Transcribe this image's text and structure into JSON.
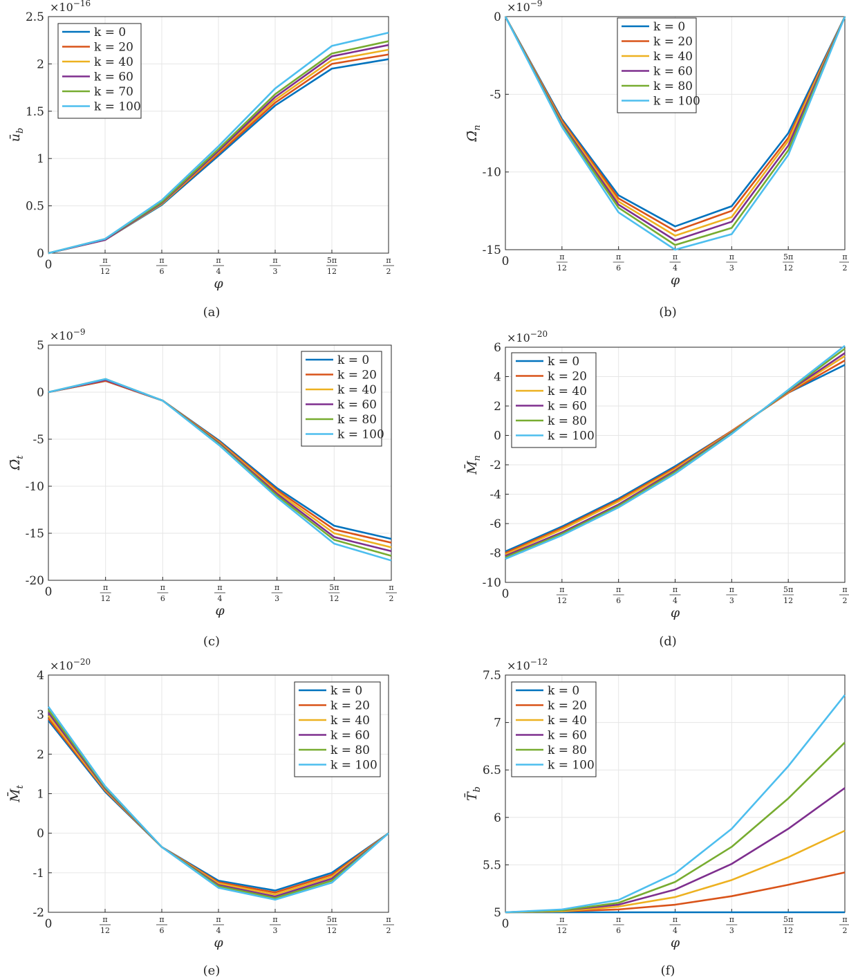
{
  "figure": {
    "captions": [
      "(a)",
      "(b)",
      "(c)",
      "(d)",
      "(e)",
      "(f)"
    ]
  },
  "colors": [
    "#0072BD",
    "#D95319",
    "#EDB120",
    "#7E2F8E",
    "#77AC30",
    "#4DBEEE"
  ],
  "x_ticks": [
    "0",
    "π/12",
    "π/6",
    "π/4",
    "π/3",
    "5π/12",
    "π/2"
  ],
  "chart_data": [
    {
      "type": "line",
      "caption": "(a)",
      "xlabel": "φ",
      "ylabel": "ū_b",
      "exponent": "×10^-16",
      "x": [
        0,
        15,
        30,
        45,
        60,
        75,
        90
      ],
      "ylim": [
        0,
        2.5
      ],
      "yticks": [
        0,
        0.5,
        1,
        1.5,
        2,
        2.5
      ],
      "ytick_labels": [
        "0",
        "0.5",
        "1",
        "1.5",
        "2",
        "2.5"
      ],
      "legend_position": "top-left",
      "series": [
        {
          "name": "k = 0",
          "values": [
            0,
            0.14,
            0.51,
            1.03,
            1.56,
            1.95,
            2.05
          ]
        },
        {
          "name": "k = 20",
          "values": [
            0,
            0.14,
            0.52,
            1.05,
            1.59,
            2.0,
            2.1
          ]
        },
        {
          "name": "k = 40",
          "values": [
            0,
            0.14,
            0.52,
            1.07,
            1.62,
            2.04,
            2.15
          ]
        },
        {
          "name": "k = 60",
          "values": [
            0,
            0.14,
            0.53,
            1.08,
            1.65,
            2.08,
            2.2
          ]
        },
        {
          "name": "k = 70",
          "values": [
            0,
            0.15,
            0.54,
            1.1,
            1.68,
            2.11,
            2.24
          ]
        },
        {
          "name": "k = 100",
          "values": [
            0,
            0.15,
            0.56,
            1.13,
            1.74,
            2.19,
            2.33
          ]
        }
      ]
    },
    {
      "type": "line",
      "caption": "(b)",
      "xlabel": "φ",
      "ylabel": "Ω̄_n",
      "exponent": "×10^-9",
      "x": [
        0,
        15,
        30,
        45,
        60,
        75,
        90
      ],
      "ylim": [
        -15,
        0
      ],
      "yticks": [
        -15,
        -10,
        -5,
        0
      ],
      "ytick_labels": [
        "-15",
        "-10",
        "-5",
        "0"
      ],
      "legend_position": "top-center",
      "series": [
        {
          "name": "k = 0",
          "values": [
            0,
            -6.6,
            -11.5,
            -13.5,
            -12.2,
            -7.5,
            0
          ]
        },
        {
          "name": "k = 20",
          "values": [
            0,
            -6.7,
            -11.7,
            -13.8,
            -12.5,
            -7.8,
            0
          ]
        },
        {
          "name": "k = 40",
          "values": [
            0,
            -6.8,
            -11.9,
            -14.1,
            -12.9,
            -8.0,
            0
          ]
        },
        {
          "name": "k = 60",
          "values": [
            0,
            -6.9,
            -12.1,
            -14.4,
            -13.2,
            -8.3,
            0
          ]
        },
        {
          "name": "k = 80",
          "values": [
            0,
            -7.0,
            -12.3,
            -14.7,
            -13.6,
            -8.6,
            0
          ]
        },
        {
          "name": "k = 100",
          "values": [
            0,
            -7.1,
            -12.6,
            -15.0,
            -14.0,
            -8.9,
            0
          ]
        }
      ]
    },
    {
      "type": "line",
      "caption": "(c)",
      "xlabel": "φ",
      "ylabel": "Ω̄_t",
      "exponent": "×10^-9",
      "x": [
        0,
        15,
        30,
        45,
        60,
        75,
        90
      ],
      "ylim": [
        -20,
        5
      ],
      "yticks": [
        -20,
        -15,
        -10,
        -5,
        0,
        5
      ],
      "ytick_labels": [
        "-20",
        "-15",
        "-10",
        "-5",
        "0",
        "5"
      ],
      "legend_position": "top-right",
      "series": [
        {
          "name": "k = 0",
          "values": [
            0,
            1.2,
            -0.9,
            -5.2,
            -10.2,
            -14.2,
            -15.6
          ]
        },
        {
          "name": "k = 20",
          "values": [
            0,
            1.2,
            -0.9,
            -5.3,
            -10.4,
            -14.6,
            -16.0
          ]
        },
        {
          "name": "k = 40",
          "values": [
            0,
            1.3,
            -0.9,
            -5.4,
            -10.6,
            -15.0,
            -16.5
          ]
        },
        {
          "name": "k = 60",
          "values": [
            0,
            1.3,
            -0.9,
            -5.5,
            -10.8,
            -15.4,
            -16.9
          ]
        },
        {
          "name": "k = 80",
          "values": [
            0,
            1.4,
            -0.9,
            -5.6,
            -11.0,
            -15.7,
            -17.4
          ]
        },
        {
          "name": "k = 100",
          "values": [
            0,
            1.4,
            -0.9,
            -5.7,
            -11.2,
            -16.1,
            -17.9
          ]
        }
      ]
    },
    {
      "type": "line",
      "caption": "(d)",
      "xlabel": "φ",
      "ylabel": "M̄_n",
      "exponent": "×10^-20",
      "x": [
        0,
        15,
        30,
        45,
        60,
        75,
        90
      ],
      "ylim": [
        -10,
        6
      ],
      "yticks": [
        -10,
        -8,
        -6,
        -4,
        -2,
        0,
        2,
        4,
        6
      ],
      "ytick_labels": [
        "-10",
        "-8",
        "-6",
        "-4",
        "-2",
        "0",
        "2",
        "4",
        "6"
      ],
      "legend_position": "top-left",
      "series": [
        {
          "name": "k = 0",
          "values": [
            -7.9,
            -6.2,
            -4.3,
            -2.1,
            0.3,
            2.9,
            4.8
          ]
        },
        {
          "name": "k = 20",
          "values": [
            -8.0,
            -6.3,
            -4.4,
            -2.2,
            0.3,
            2.9,
            5.1
          ]
        },
        {
          "name": "k = 40",
          "values": [
            -8.1,
            -6.4,
            -4.5,
            -2.3,
            0.25,
            2.95,
            5.4
          ]
        },
        {
          "name": "k = 60",
          "values": [
            -8.2,
            -6.6,
            -4.7,
            -2.4,
            0.2,
            3.0,
            5.6
          ]
        },
        {
          "name": "k = 80",
          "values": [
            -8.3,
            -6.7,
            -4.8,
            -2.5,
            0.15,
            3.05,
            5.9
          ]
        },
        {
          "name": "k = 100",
          "values": [
            -8.4,
            -6.8,
            -4.9,
            -2.6,
            0.1,
            3.1,
            6.1
          ]
        }
      ]
    },
    {
      "type": "line",
      "caption": "(e)",
      "xlabel": "φ",
      "ylabel": "M̄_t",
      "exponent": "×10^-20",
      "x": [
        0,
        15,
        30,
        45,
        60,
        75,
        90
      ],
      "ylim": [
        -2,
        4
      ],
      "yticks": [
        -2,
        -1,
        0,
        1,
        2,
        3,
        4
      ],
      "ytick_labels": [
        "-2",
        "-1",
        "0",
        "1",
        "2",
        "3",
        "4"
      ],
      "legend_position": "top-right",
      "series": [
        {
          "name": "k = 0",
          "values": [
            2.85,
            1.05,
            -0.35,
            -1.2,
            -1.45,
            -1.0,
            0
          ]
        },
        {
          "name": "k = 20",
          "values": [
            2.9,
            1.08,
            -0.35,
            -1.24,
            -1.5,
            -1.05,
            0
          ]
        },
        {
          "name": "k = 40",
          "values": [
            2.97,
            1.1,
            -0.35,
            -1.27,
            -1.55,
            -1.1,
            0
          ]
        },
        {
          "name": "k = 60",
          "values": [
            3.05,
            1.13,
            -0.35,
            -1.31,
            -1.6,
            -1.15,
            0
          ]
        },
        {
          "name": "k = 80",
          "values": [
            3.12,
            1.16,
            -0.35,
            -1.34,
            -1.64,
            -1.2,
            0
          ]
        },
        {
          "name": "k = 100",
          "values": [
            3.2,
            1.19,
            -0.35,
            -1.38,
            -1.68,
            -1.25,
            0
          ]
        }
      ]
    },
    {
      "type": "line",
      "caption": "(f)",
      "xlabel": "φ",
      "ylabel": "T̄_b",
      "exponent": "×10^-12",
      "x": [
        0,
        15,
        30,
        45,
        60,
        75,
        90
      ],
      "ylim": [
        5,
        7.5
      ],
      "yticks": [
        5,
        5.5,
        6,
        6.5,
        7,
        7.5
      ],
      "ytick_labels": [
        "5",
        "5.5",
        "6",
        "6.5",
        "7",
        "7.5"
      ],
      "legend_position": "top-left",
      "series": [
        {
          "name": "k = 0",
          "values": [
            5,
            5,
            5,
            5,
            5,
            5,
            5
          ]
        },
        {
          "name": "k = 20",
          "values": [
            5,
            5.01,
            5.03,
            5.08,
            5.17,
            5.29,
            5.42
          ]
        },
        {
          "name": "k = 40",
          "values": [
            5,
            5.01,
            5.06,
            5.16,
            5.34,
            5.58,
            5.86
          ]
        },
        {
          "name": "k = 60",
          "values": [
            5,
            5.02,
            5.08,
            5.24,
            5.51,
            5.88,
            6.31
          ]
        },
        {
          "name": "k = 80",
          "values": [
            5,
            5.02,
            5.1,
            5.32,
            5.69,
            6.2,
            6.79
          ]
        },
        {
          "name": "k = 100",
          "values": [
            5,
            5.03,
            5.13,
            5.41,
            5.88,
            6.54,
            7.29
          ]
        }
      ]
    }
  ]
}
